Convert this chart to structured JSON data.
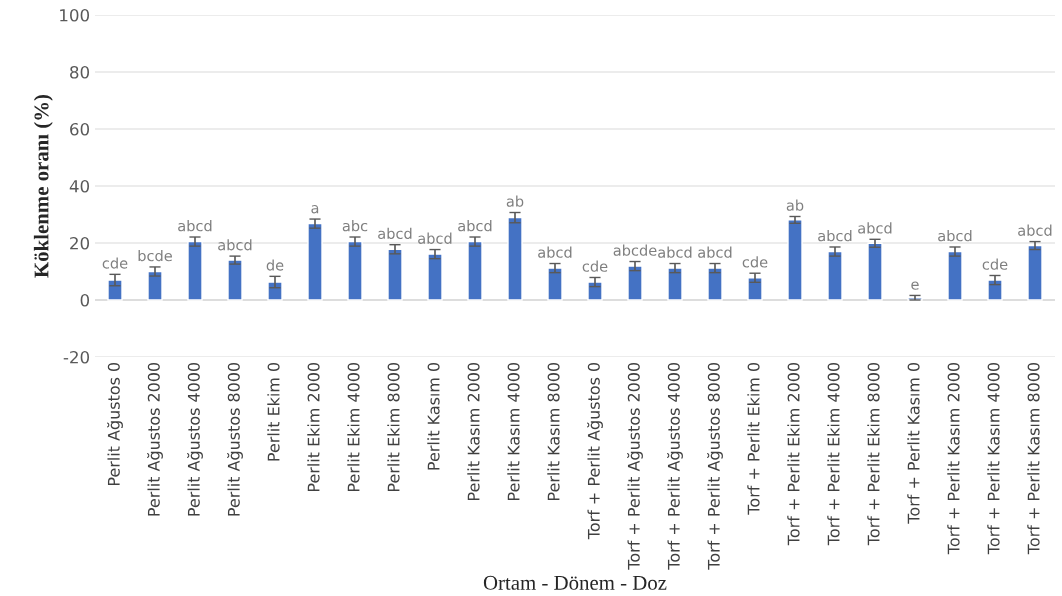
{
  "chart_data": {
    "type": "bar",
    "xlabel": "Ortam - Dönem - Doz",
    "ylabel": "Köklenme oranı (%)",
    "categories": [
      "Perlit Ağustos 0",
      "Perlit Ağustos 2000",
      "Perlit Ağustos 4000",
      "Perlit Ağustos 8000",
      "Perlit Ekim 0",
      "Perlit Ekim 2000",
      "Perlit Ekim 4000",
      "Perlit Ekim 8000",
      "Perlit Kasım 0",
      "Perlit Kasım 2000",
      "Perlit Kasım 4000",
      "Perlit Kasım 8000",
      "Torf + Perlit Ağustos 0",
      "Torf + Perlit Ağustos 2000",
      "Torf + Perlit Ağustos 4000",
      "Torf + Perlit Ağustos 8000",
      "Torf + Perlit Ekim 0",
      "Torf + Perlit Ekim 2000",
      "Torf + Perlit Ekim 4000",
      "Torf + Perlit Ekim 8000",
      "Torf + Perlit Kasım 0",
      "Torf + Perlit Kasım 2000",
      "Torf + Perlit Kasım 4000",
      "Torf + Perlit Kasım 8000"
    ],
    "values": [
      7,
      10,
      20.5,
      14,
      6.3,
      26.8,
      20.5,
      17.8,
      16.1,
      20.5,
      28.9,
      11.2,
      6.3,
      11.9,
      11.2,
      11.2,
      7.8,
      28.1,
      17,
      19.9,
      0.8,
      17,
      7,
      19.1
    ],
    "errors": [
      2,
      1.6,
      1.6,
      1.4,
      2,
      1.6,
      1.6,
      1.6,
      1.6,
      1.6,
      1.8,
      1.6,
      1.6,
      1.6,
      1.6,
      1.6,
      1.6,
      1.2,
      1.6,
      1.4,
      0.8,
      1.6,
      1.6,
      1.4
    ],
    "color": "#4472c4",
    "ylim": [
      -20,
      100
    ],
    "yticks": [
      -20,
      0,
      20,
      40,
      60,
      80,
      100
    ],
    "grid": "y",
    "value_labels": [
      "cde",
      "bcde",
      "abcd",
      "abcd",
      "de",
      "a",
      "abc",
      "abcd",
      "abcd",
      "abcd",
      "ab",
      "abcd",
      "cde",
      "abcde",
      "abcd",
      "abcd",
      "cde",
      "ab",
      "abcd",
      "abcd",
      "e",
      "abcd",
      "cde",
      "abcd"
    ]
  }
}
